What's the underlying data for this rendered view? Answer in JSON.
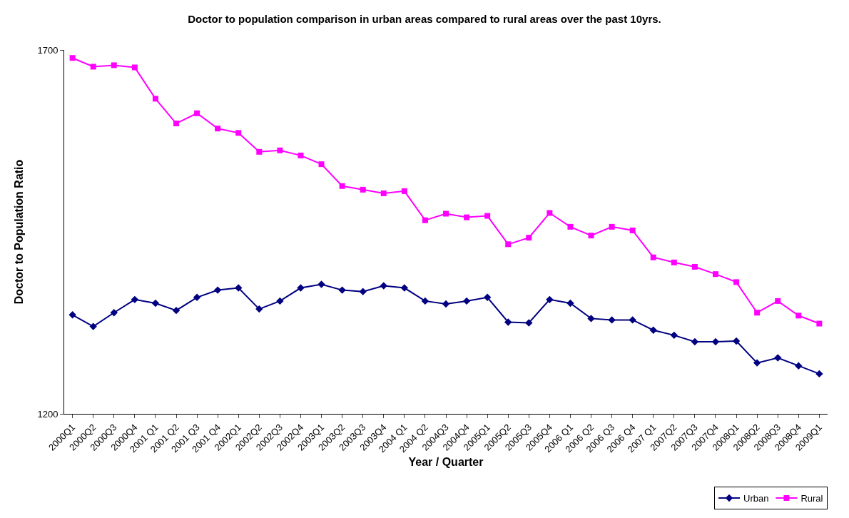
{
  "chart_data": {
    "type": "line",
    "title": "Doctor to population comparison in urban areas compared to rural areas over the past 10yrs.",
    "xlabel": "Year / Quarter",
    "ylabel": "Doctor to Population Ratio",
    "categories": [
      "2000Q1",
      "2000Q2",
      "2000Q3",
      "2000Q4",
      "2001 Q1",
      "2001 Q2",
      "2001 Q3",
      "2001 Q4",
      "2002Q1",
      "2002Q2",
      "2002Q3",
      "2002Q4",
      "2003Q1",
      "2003Q2",
      "2003Q3",
      "2003Q4",
      "2004 Q1",
      "2004 Q2",
      "2004Q3",
      "2004Q4",
      "2005Q1",
      "2005Q2",
      "2005Q3",
      "2005Q4",
      "2006 Q1",
      "2006 Q2",
      "2006 Q3",
      "2006 Q4",
      "2007 Q1",
      "2007Q2",
      "2007Q3",
      "2007Q4",
      "2008Q1",
      "2008Q2",
      "2008Q3",
      "2008Q4",
      "2009Q1"
    ],
    "series": [
      {
        "name": "Urban",
        "color": "#000080",
        "marker": "diamond",
        "values": [
          1336,
          1320,
          1339,
          1357,
          1352,
          1342,
          1360,
          1370,
          1373,
          1344,
          1355,
          1373,
          1378,
          1370,
          1368,
          1376,
          1373,
          1355,
          1351,
          1355,
          1360,
          1326,
          1325,
          1357,
          1352,
          1331,
          1329,
          1329,
          1315,
          1308,
          1299,
          1299,
          1300,
          1270,
          1277,
          1266,
          1255
        ]
      },
      {
        "name": "Rural",
        "color": "#ff00ff",
        "marker": "square",
        "values": [
          1689,
          1677,
          1679,
          1676,
          1633,
          1599,
          1613,
          1592,
          1586,
          1560,
          1562,
          1555,
          1543,
          1513,
          1508,
          1503,
          1506,
          1466,
          1475,
          1470,
          1472,
          1433,
          1442,
          1476,
          1457,
          1445,
          1457,
          1452,
          1415,
          1408,
          1402,
          1392,
          1381,
          1339,
          1355,
          1335,
          1324
        ]
      }
    ],
    "ylim": [
      1200,
      1700
    ],
    "yticks": [
      1200,
      1700
    ],
    "legend": "bottom right",
    "line_style": "solid"
  }
}
